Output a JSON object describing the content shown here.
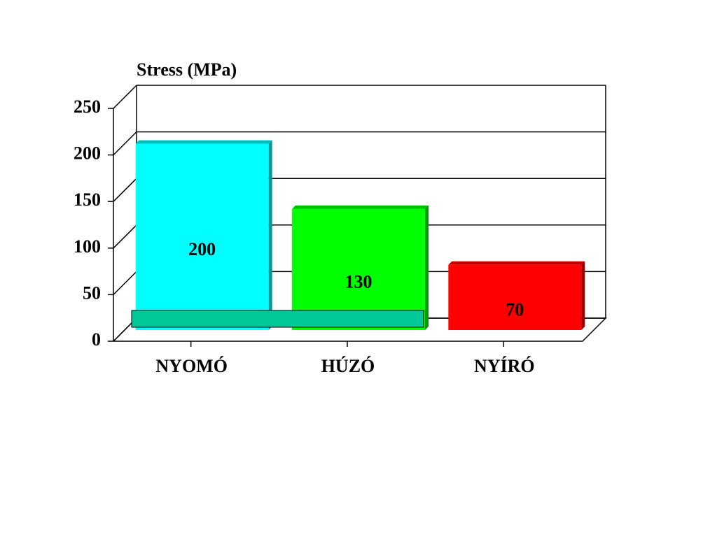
{
  "chart_data": {
    "type": "bar3d",
    "y_label": "Stress (MPa)",
    "categories": [
      "NYOMÓ",
      "HÚZÓ",
      "NYÍRÓ"
    ],
    "values": [
      200,
      130,
      70
    ],
    "colors": [
      "#00ffff",
      "#00ff00",
      "#ff0000"
    ],
    "ylim": [
      0,
      250
    ],
    "yticks": [
      0,
      50,
      100,
      150,
      200,
      250
    ],
    "grid": true
  }
}
